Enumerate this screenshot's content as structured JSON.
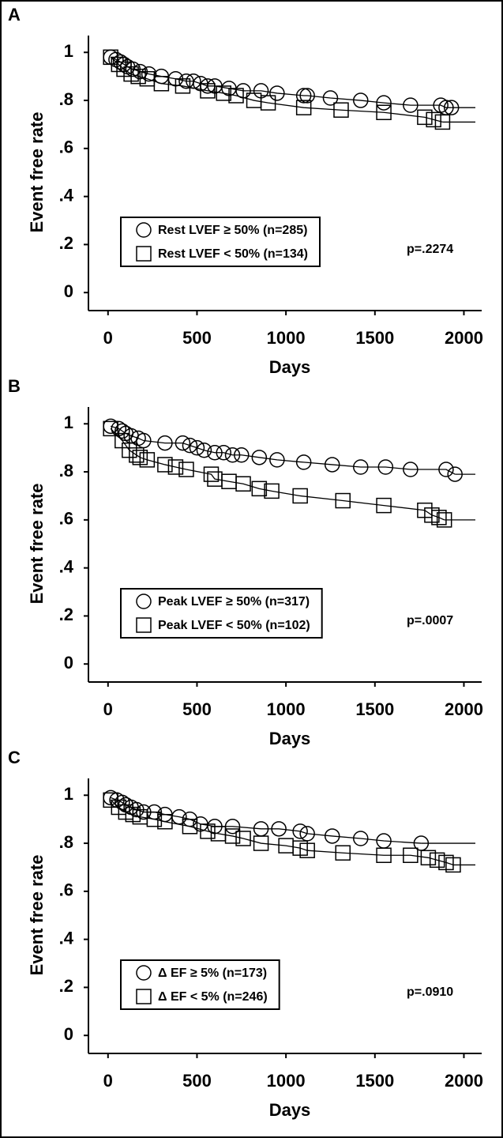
{
  "chart_data": [
    {
      "type": "line",
      "panel_label": "A",
      "x_label": "Days",
      "y_label": "Event free rate",
      "annotation": "p=.2274",
      "xlim": [
        -110,
        2100
      ],
      "ylim": [
        -0.075,
        1.07
      ],
      "xticks": [
        0,
        500,
        1000,
        1500,
        2000
      ],
      "yticks": [
        0,
        {
          "value": 0.2,
          "label": ".2"
        },
        {
          "value": 0.4,
          "label": ".4"
        },
        {
          "value": 0.6,
          "label": ".6"
        },
        {
          "value": 0.8,
          "label": ".8"
        },
        1
      ],
      "series": [
        {
          "name": "Rest LVEF ≥ 50% (n=285)",
          "color": "#000000",
          "marker": "circle",
          "x": [
            15,
            45,
            70,
            90,
            110,
            140,
            180,
            230,
            300,
            380,
            440,
            480,
            520,
            560,
            600,
            680,
            760,
            860,
            950,
            1100,
            1120,
            1250,
            1420,
            1550,
            1700,
            1870,
            1900,
            1930
          ],
          "values": [
            0.98,
            0.97,
            0.96,
            0.95,
            0.94,
            0.93,
            0.92,
            0.91,
            0.9,
            0.89,
            0.88,
            0.88,
            0.87,
            0.86,
            0.86,
            0.85,
            0.84,
            0.84,
            0.83,
            0.82,
            0.82,
            0.81,
            0.8,
            0.79,
            0.78,
            0.78,
            0.77,
            0.77
          ]
        },
        {
          "name": "Rest LVEF < 50% (n=134)",
          "color": "#000000",
          "marker": "square",
          "x": [
            15,
            60,
            90,
            130,
            170,
            220,
            300,
            420,
            560,
            650,
            720,
            820,
            900,
            1100,
            1310,
            1550,
            1780,
            1830,
            1880
          ],
          "values": [
            0.98,
            0.95,
            0.93,
            0.91,
            0.9,
            0.89,
            0.87,
            0.86,
            0.84,
            0.83,
            0.82,
            0.8,
            0.79,
            0.77,
            0.76,
            0.75,
            0.73,
            0.72,
            0.71
          ]
        }
      ]
    },
    {
      "type": "line",
      "panel_label": "B",
      "x_label": "Days",
      "y_label": "Event free rate",
      "annotation": "p=.0007",
      "xlim": [
        -110,
        2100
      ],
      "ylim": [
        -0.075,
        1.07
      ],
      "xticks": [
        0,
        500,
        1000,
        1500,
        2000
      ],
      "yticks": [
        0,
        {
          "value": 0.2,
          "label": ".2"
        },
        {
          "value": 0.4,
          "label": ".4"
        },
        {
          "value": 0.6,
          "label": ".6"
        },
        {
          "value": 0.8,
          "label": ".8"
        },
        1
      ],
      "series": [
        {
          "name": "Peak LVEF ≥ 50% (n=317)",
          "color": "#000000",
          "marker": "circle",
          "x": [
            15,
            60,
            80,
            100,
            130,
            170,
            200,
            320,
            420,
            460,
            500,
            540,
            600,
            650,
            700,
            750,
            850,
            950,
            1100,
            1260,
            1420,
            1560,
            1700,
            1900,
            1950
          ],
          "values": [
            0.99,
            0.98,
            0.97,
            0.96,
            0.95,
            0.94,
            0.93,
            0.92,
            0.92,
            0.91,
            0.9,
            0.89,
            0.88,
            0.88,
            0.87,
            0.87,
            0.86,
            0.85,
            0.84,
            0.83,
            0.82,
            0.82,
            0.81,
            0.81,
            0.79
          ]
        },
        {
          "name": "Peak LVEF < 50% (n=102)",
          "color": "#000000",
          "marker": "square",
          "x": [
            15,
            80,
            120,
            160,
            180,
            220,
            320,
            380,
            440,
            580,
            600,
            680,
            760,
            850,
            920,
            1080,
            1320,
            1550,
            1780,
            1820,
            1860,
            1890
          ],
          "values": [
            0.98,
            0.93,
            0.89,
            0.87,
            0.86,
            0.85,
            0.83,
            0.82,
            0.81,
            0.79,
            0.77,
            0.76,
            0.75,
            0.73,
            0.72,
            0.7,
            0.68,
            0.66,
            0.64,
            0.62,
            0.61,
            0.6
          ]
        }
      ]
    },
    {
      "type": "line",
      "panel_label": "C",
      "x_label": "Days",
      "y_label": "Event free rate",
      "annotation": "p=.0910",
      "xlim": [
        -110,
        2100
      ],
      "ylim": [
        -0.075,
        1.07
      ],
      "xticks": [
        0,
        500,
        1000,
        1500,
        2000
      ],
      "yticks": [
        0,
        {
          "value": 0.2,
          "label": ".2"
        },
        {
          "value": 0.4,
          "label": ".4"
        },
        {
          "value": 0.6,
          "label": ".6"
        },
        {
          "value": 0.8,
          "label": ".8"
        },
        1
      ],
      "series": [
        {
          "name": "Δ EF ≥ 5% (n=173)",
          "color": "#000000",
          "marker": "circle",
          "x": [
            15,
            50,
            80,
            100,
            130,
            160,
            200,
            260,
            320,
            400,
            460,
            520,
            600,
            700,
            860,
            960,
            1080,
            1120,
            1260,
            1420,
            1550,
            1760
          ],
          "values": [
            0.99,
            0.98,
            0.97,
            0.96,
            0.95,
            0.94,
            0.93,
            0.93,
            0.92,
            0.91,
            0.9,
            0.88,
            0.87,
            0.87,
            0.86,
            0.86,
            0.85,
            0.84,
            0.83,
            0.82,
            0.81,
            0.8
          ]
        },
        {
          "name": "Δ EF < 5% (n=246)",
          "color": "#000000",
          "marker": "square",
          "x": [
            15,
            60,
            100,
            140,
            180,
            260,
            320,
            460,
            560,
            620,
            700,
            760,
            860,
            1000,
            1080,
            1120,
            1320,
            1550,
            1700,
            1800,
            1850,
            1900,
            1940
          ],
          "values": [
            0.98,
            0.95,
            0.93,
            0.92,
            0.91,
            0.9,
            0.89,
            0.87,
            0.85,
            0.84,
            0.83,
            0.82,
            0.8,
            0.79,
            0.78,
            0.77,
            0.76,
            0.75,
            0.75,
            0.74,
            0.73,
            0.72,
            0.71
          ]
        }
      ]
    }
  ]
}
